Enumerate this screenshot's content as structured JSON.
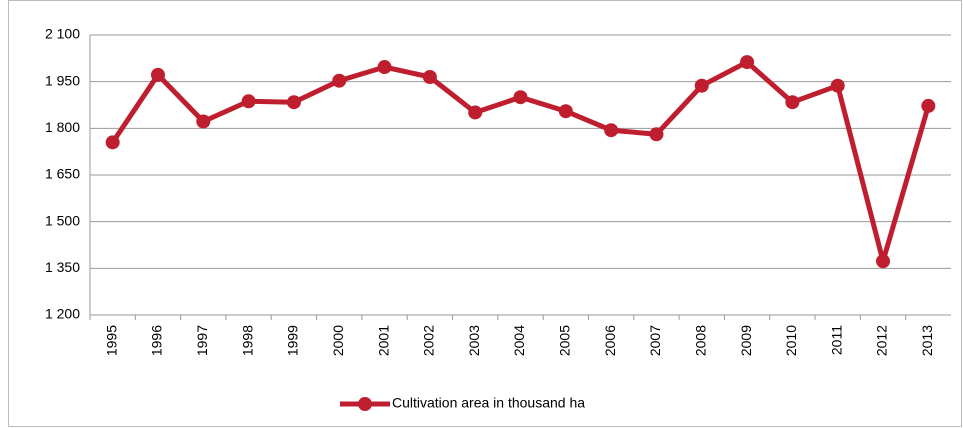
{
  "chart_data": {
    "type": "line",
    "categories": [
      "1995",
      "1996",
      "1997",
      "1998",
      "1999",
      "2000",
      "2001",
      "2002",
      "2003",
      "2004",
      "2005",
      "2006",
      "2007",
      "2008",
      "2009",
      "2010",
      "2011",
      "2012",
      "2013"
    ],
    "series": [
      {
        "name": "Cultivation area in thousand ha",
        "color": "#be1e2d",
        "values": [
          1755,
          1972,
          1822,
          1887,
          1884,
          1953,
          1997,
          1965,
          1851,
          1900,
          1855,
          1794,
          1781,
          1937,
          2013,
          1884,
          1937,
          1373,
          1872
        ]
      }
    ],
    "ylim": [
      1200,
      2100
    ],
    "yticks": [
      {
        "value": 1200,
        "label": "1 200"
      },
      {
        "value": 1350,
        "label": "1 350"
      },
      {
        "value": 1500,
        "label": "1 500"
      },
      {
        "value": 1650,
        "label": "1 650"
      },
      {
        "value": 1800,
        "label": "1 800"
      },
      {
        "value": 1950,
        "label": "1 950"
      },
      {
        "value": 2100,
        "label": "2 100"
      }
    ],
    "grid": true,
    "legend": "bottom"
  }
}
